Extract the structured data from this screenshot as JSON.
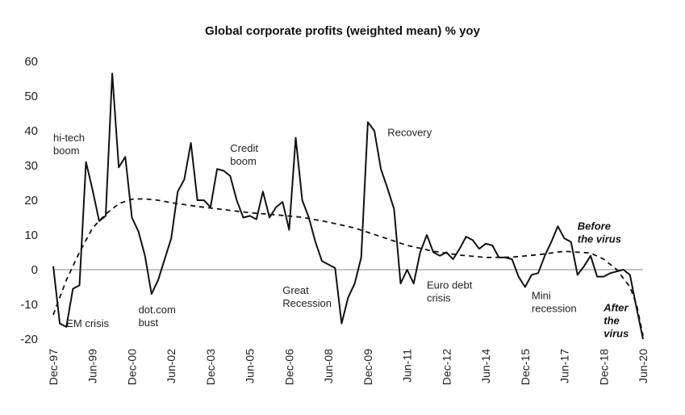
{
  "chart_data": {
    "type": "line",
    "title": "Global corporate profits (weighted mean) % yoy",
    "xlabel": "",
    "ylabel": "",
    "ylim": [
      -20,
      60
    ],
    "yticks": [
      -20,
      -10,
      0,
      10,
      20,
      30,
      40,
      50,
      60
    ],
    "xlim": [
      "1997-12",
      "2020-06"
    ],
    "xtick_labels": [
      "Dec-97",
      "Jun-99",
      "Dec-00",
      "Jun-02",
      "Dec-03",
      "Jun-05",
      "Dec-06",
      "Jun-08",
      "Dec-09",
      "Jun-11",
      "Dec-12",
      "Jun-14",
      "Dec-15",
      "Jun-17",
      "Dec-18",
      "Jun-20"
    ],
    "xtick_dates": [
      "1997-12",
      "1999-06",
      "2000-12",
      "2002-06",
      "2003-12",
      "2005-06",
      "2006-12",
      "2008-06",
      "2009-12",
      "2011-06",
      "2012-12",
      "2014-06",
      "2015-12",
      "2017-06",
      "2018-12",
      "2020-06"
    ],
    "grid": false,
    "legend": "none",
    "series": [
      {
        "style": "solid",
        "color": "#111111",
        "points": [
          [
            "1997-12",
            1
          ],
          [
            "1998-03",
            -15.5
          ],
          [
            "1998-06",
            -16.5
          ],
          [
            "1998-09",
            -5.5
          ],
          [
            "1998-12",
            -4.5
          ],
          [
            "1999-03",
            31
          ],
          [
            "1999-06",
            23
          ],
          [
            "1999-09",
            14
          ],
          [
            "1999-12",
            15.5
          ],
          [
            "2000-03",
            56.5
          ],
          [
            "2000-06",
            29.5
          ],
          [
            "2000-09",
            32.5
          ],
          [
            "2000-12",
            15
          ],
          [
            "2001-03",
            11
          ],
          [
            "2001-06",
            4
          ],
          [
            "2001-09",
            -7
          ],
          [
            "2001-12",
            -3
          ],
          [
            "2002-03",
            3
          ],
          [
            "2002-06",
            9
          ],
          [
            "2002-09",
            22.5
          ],
          [
            "2002-12",
            26
          ],
          [
            "2003-03",
            36.5
          ],
          [
            "2003-06",
            20
          ],
          [
            "2003-09",
            20
          ],
          [
            "2003-12",
            18
          ],
          [
            "2004-03",
            29
          ],
          [
            "2004-06",
            28.5
          ],
          [
            "2004-09",
            27
          ],
          [
            "2004-12",
            20
          ],
          [
            "2005-03",
            15
          ],
          [
            "2005-06",
            15.5
          ],
          [
            "2005-09",
            14.5
          ],
          [
            "2005-12",
            22.5
          ],
          [
            "2006-03",
            15
          ],
          [
            "2006-06",
            18
          ],
          [
            "2006-09",
            19.5
          ],
          [
            "2006-12",
            11.5
          ],
          [
            "2007-03",
            38
          ],
          [
            "2007-06",
            20
          ],
          [
            "2007-09",
            15
          ],
          [
            "2007-12",
            8
          ],
          [
            "2008-03",
            2.5
          ],
          [
            "2008-06",
            1.5
          ],
          [
            "2008-09",
            0.5
          ],
          [
            "2008-12",
            -15.5
          ],
          [
            "2009-03",
            -8
          ],
          [
            "2009-06",
            -4
          ],
          [
            "2009-09",
            3.5
          ],
          [
            "2009-12",
            42.5
          ],
          [
            "2010-03",
            40
          ],
          [
            "2010-06",
            29
          ],
          [
            "2010-09",
            23.5
          ],
          [
            "2010-12",
            17.5
          ],
          [
            "2011-03",
            -4
          ],
          [
            "2011-06",
            0
          ],
          [
            "2011-09",
            -4
          ],
          [
            "2011-12",
            5
          ],
          [
            "2012-03",
            10
          ],
          [
            "2012-06",
            5
          ],
          [
            "2012-09",
            4
          ],
          [
            "2012-12",
            5
          ],
          [
            "2013-03",
            3
          ],
          [
            "2013-06",
            6
          ],
          [
            "2013-09",
            9.5
          ],
          [
            "2013-12",
            8.5
          ],
          [
            "2014-03",
            6
          ],
          [
            "2014-06",
            7.5
          ],
          [
            "2014-09",
            7
          ],
          [
            "2014-12",
            3.5
          ],
          [
            "2015-03",
            3.5
          ],
          [
            "2015-06",
            3
          ],
          [
            "2015-09",
            -2
          ],
          [
            "2015-12",
            -5
          ],
          [
            "2016-03",
            -1.5
          ],
          [
            "2016-06",
            -1
          ],
          [
            "2016-09",
            4
          ],
          [
            "2016-12",
            8
          ],
          [
            "2017-03",
            12.5
          ],
          [
            "2017-06",
            9
          ],
          [
            "2017-09",
            8
          ],
          [
            "2017-12",
            -1.5
          ],
          [
            "2018-03",
            1
          ],
          [
            "2018-06",
            4
          ],
          [
            "2018-09",
            -2
          ],
          [
            "2018-12",
            -2
          ],
          [
            "2019-03",
            -1
          ],
          [
            "2019-06",
            -0.5
          ],
          [
            "2019-09",
            0
          ],
          [
            "2019-12",
            -1.5
          ],
          [
            "2020-03",
            -11
          ],
          [
            "2020-06",
            -20
          ]
        ]
      },
      {
        "style": "dashed",
        "color": "#111111",
        "points": [
          [
            "1997-12",
            -13
          ],
          [
            "1998-06",
            -3
          ],
          [
            "1998-12",
            5
          ],
          [
            "1999-06",
            12
          ],
          [
            "1999-12",
            16
          ],
          [
            "2000-06",
            19
          ],
          [
            "2000-12",
            20.3
          ],
          [
            "2001-06",
            20.4
          ],
          [
            "2001-12",
            20
          ],
          [
            "2002-06",
            19.3
          ],
          [
            "2003-06",
            18.2
          ],
          [
            "2004-06",
            17.3
          ],
          [
            "2005-06",
            16.4
          ],
          [
            "2006-06",
            15.8
          ],
          [
            "2007-06",
            15.1
          ],
          [
            "2008-06",
            13.7
          ],
          [
            "2009-06",
            12
          ],
          [
            "2010-06",
            9.5
          ],
          [
            "2011-06",
            7
          ],
          [
            "2012-06",
            5.3
          ],
          [
            "2013-06",
            4.2
          ],
          [
            "2014-06",
            3.5
          ],
          [
            "2015-06",
            3.6
          ],
          [
            "2016-06",
            4.3
          ],
          [
            "2017-06",
            5.3
          ],
          [
            "2018-06",
            4.8
          ],
          [
            "2018-12",
            3
          ],
          [
            "2019-06",
            0
          ],
          [
            "2019-12",
            -5
          ],
          [
            "2020-03",
            -10
          ],
          [
            "2020-06",
            -19
          ]
        ]
      }
    ],
    "annotations": [
      {
        "lines": [
          "hi-tech",
          "boom"
        ],
        "x": "1997-12",
        "y": 37,
        "style": "normal"
      },
      {
        "lines": [
          "EM crisis"
        ],
        "x": "1998-06",
        "y": -16.5,
        "style": "normal"
      },
      {
        "lines": [
          "dot.com",
          "bust"
        ],
        "x": "2001-03",
        "y": -12.5,
        "style": "normal"
      },
      {
        "lines": [
          "Credit",
          "boom"
        ],
        "x": "2004-09",
        "y": 34,
        "style": "normal"
      },
      {
        "lines": [
          "Great",
          "Recession"
        ],
        "x": "2006-09",
        "y": -7,
        "style": "normal"
      },
      {
        "lines": [
          "Recovery"
        ],
        "x": "2010-09",
        "y": 38.5,
        "style": "normal"
      },
      {
        "lines": [
          "Euro debt",
          "crisis"
        ],
        "x": "2012-03",
        "y": -5.5,
        "style": "normal"
      },
      {
        "lines": [
          "Mini",
          "recession"
        ],
        "x": "2016-03",
        "y": -8.5,
        "style": "normal"
      },
      {
        "lines": [
          "Before",
          "the virus"
        ],
        "x": "2017-12",
        "y": 11.5,
        "style": "bold-italic"
      },
      {
        "lines": [
          "After",
          "the",
          "virus"
        ],
        "x": "2018-12",
        "y": -12,
        "style": "bold-italic"
      }
    ]
  }
}
